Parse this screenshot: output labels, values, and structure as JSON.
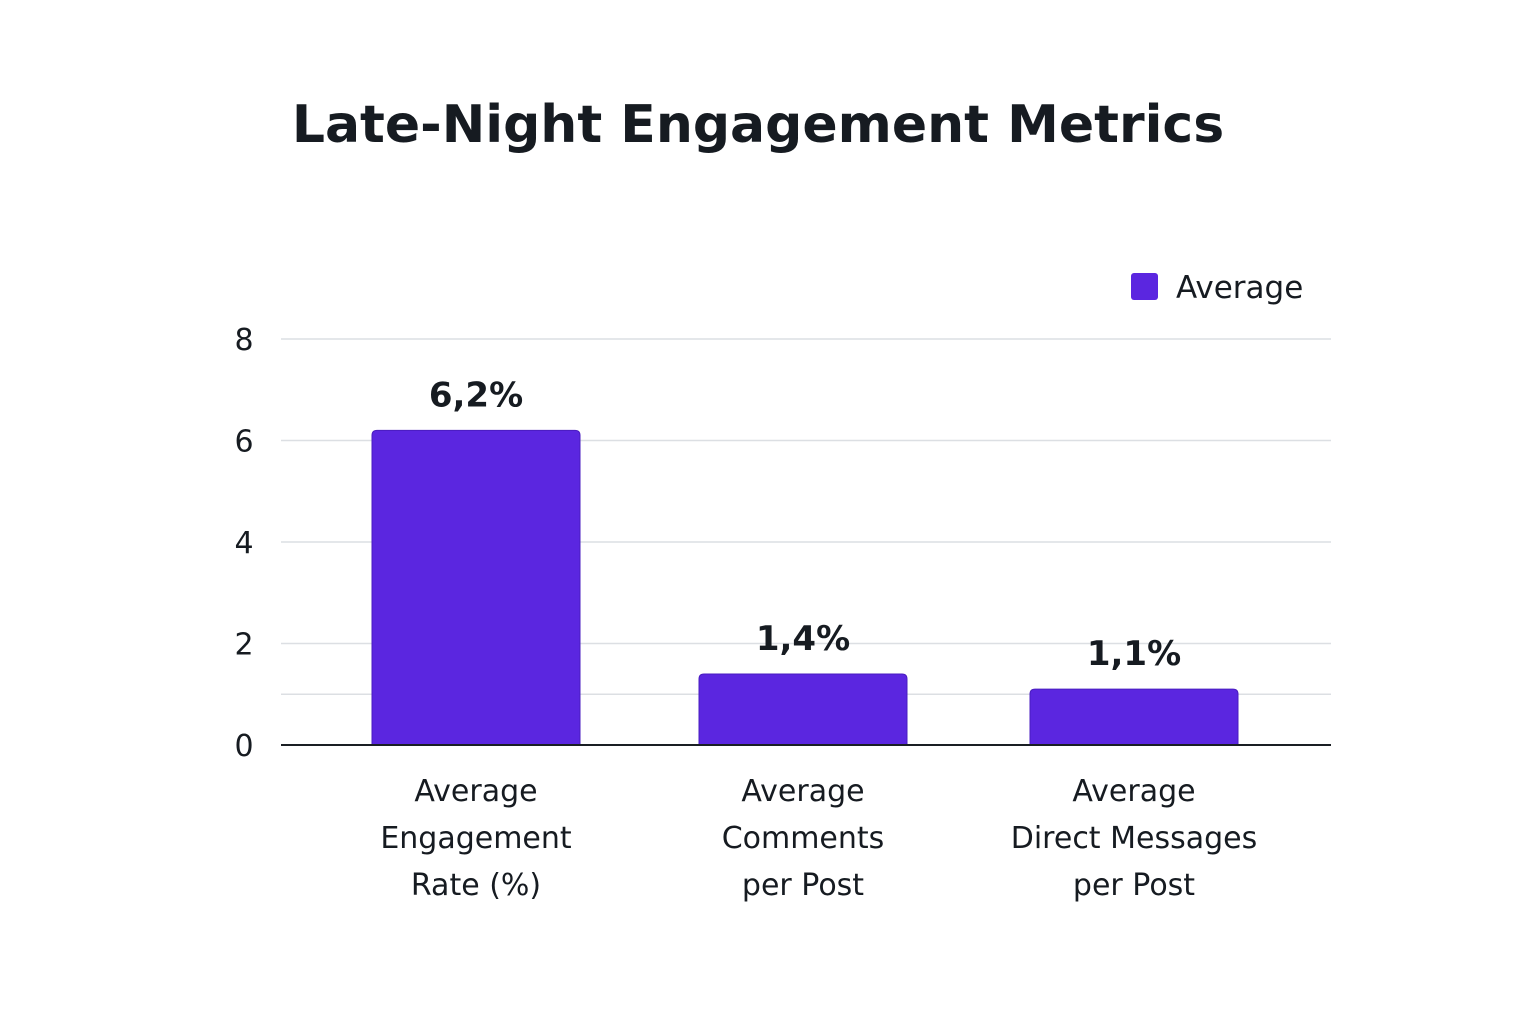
{
  "chart_data": {
    "type": "bar",
    "title": "Late-Night Engagement Metrics",
    "xlabel": "",
    "ylabel": "",
    "ylim": [
      0,
      8
    ],
    "y_ticks": [
      {
        "value": 0,
        "label": "0"
      },
      {
        "value": 2,
        "label": "2"
      },
      {
        "value": 4,
        "label": "4"
      },
      {
        "value": 6,
        "label": "6"
      },
      {
        "value": 8,
        "label": "8"
      }
    ],
    "gridlines": [
      2,
      4,
      6,
      8
    ],
    "extra_gridlines": [
      1
    ],
    "grid": true,
    "legend_position": "top-right",
    "categories": [
      [
        "Average",
        "Engagement",
        "Rate (%)"
      ],
      [
        "Average",
        "Comments",
        "per Post"
      ],
      [
        "Average",
        "Direct Messages",
        "per Post"
      ]
    ],
    "series": [
      {
        "name": "Average",
        "color": "#5b26e0",
        "values": [
          6.2,
          1.4,
          1.1
        ],
        "value_labels": [
          "6,2%",
          "1,4%",
          "1,1%"
        ]
      }
    ]
  }
}
